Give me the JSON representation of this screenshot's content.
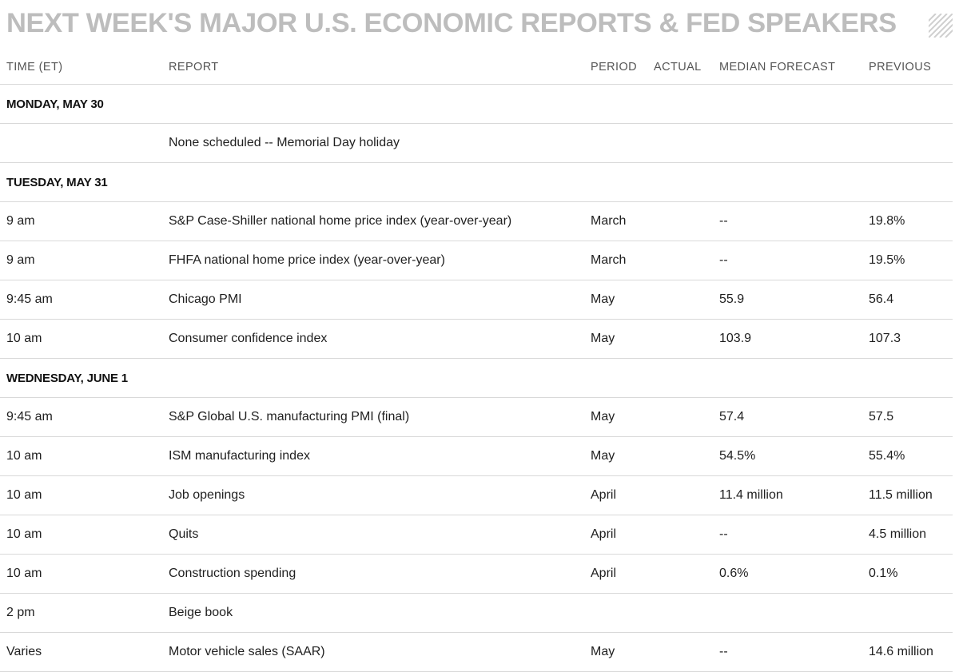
{
  "title": "NEXT WEEK'S MAJOR U.S. ECONOMIC REPORTS & FED SPEAKERS",
  "columns": {
    "time": "TIME (ET)",
    "report": "REPORT",
    "period": "PERIOD",
    "actual": "ACTUAL",
    "forecast": "MEDIAN FORECAST",
    "previous": "PREVIOUS"
  },
  "rows": [
    {
      "day": "MONDAY, MAY 30"
    },
    {
      "time": "",
      "report": "None scheduled -- Memorial Day holiday",
      "period": "",
      "actual": "",
      "forecast": "",
      "previous": ""
    },
    {
      "day": "TUESDAY, MAY 31"
    },
    {
      "time": "9 am",
      "report": "S&P Case-Shiller national home price index (year-over-year)",
      "period": "March",
      "actual": "",
      "forecast": "--",
      "previous": "19.8%"
    },
    {
      "time": "9 am",
      "report": "FHFA national home price index (year-over-year)",
      "period": "March",
      "actual": "",
      "forecast": "--",
      "previous": "19.5%"
    },
    {
      "time": "9:45 am",
      "report": "Chicago PMI",
      "period": "May",
      "actual": "",
      "forecast": "55.9",
      "previous": "56.4"
    },
    {
      "time": "10 am",
      "report": "Consumer confidence index",
      "period": "May",
      "actual": "",
      "forecast": "103.9",
      "previous": "107.3"
    },
    {
      "day": "WEDNESDAY, JUNE 1"
    },
    {
      "time": "9:45 am",
      "report": "S&P Global U.S. manufacturing PMI (final)",
      "period": "May",
      "actual": "",
      "forecast": "57.4",
      "previous": "57.5"
    },
    {
      "time": "10 am",
      "report": "ISM manufacturing index",
      "period": "May",
      "actual": "",
      "forecast": "54.5%",
      "previous": "55.4%"
    },
    {
      "time": "10 am",
      "report": "Job openings",
      "period": "April",
      "actual": "",
      "forecast": "11.4 million",
      "previous": "11.5 million"
    },
    {
      "time": "10 am",
      "report": "Quits",
      "period": "April",
      "actual": "",
      "forecast": "--",
      "previous": "4.5 million"
    },
    {
      "time": "10 am",
      "report": "Construction spending",
      "period": "April",
      "actual": "",
      "forecast": "0.6%",
      "previous": "0.1%"
    },
    {
      "time": "2 pm",
      "report": "Beige book",
      "period": "",
      "actual": "",
      "forecast": "",
      "previous": ""
    },
    {
      "time": "Varies",
      "report": "Motor vehicle sales (SAAR)",
      "period": "May",
      "actual": "",
      "forecast": "--",
      "previous": "14.6 million"
    }
  ],
  "colors": {
    "title": "#bdbdbd",
    "header_text": "#555555",
    "rule": "#d9d9d9",
    "body_text": "#1f1f1f"
  },
  "icons": {
    "title_decoration": "diagonal-hatch-icon"
  }
}
